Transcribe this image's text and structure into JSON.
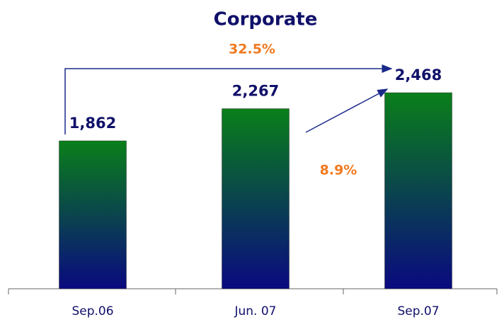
{
  "chart_data": {
    "type": "bar",
    "title": "Corporate",
    "categories": [
      "Sep.06",
      "Jun. 07",
      "Sep.07"
    ],
    "values": [
      1862,
      2267,
      2468
    ],
    "value_labels": [
      "1,862",
      "2,267",
      "2,468"
    ],
    "annotations": [
      "32.5%",
      "8.9%"
    ],
    "color": [
      "#0a7f1a",
      "#0a0a80"
    ]
  }
}
